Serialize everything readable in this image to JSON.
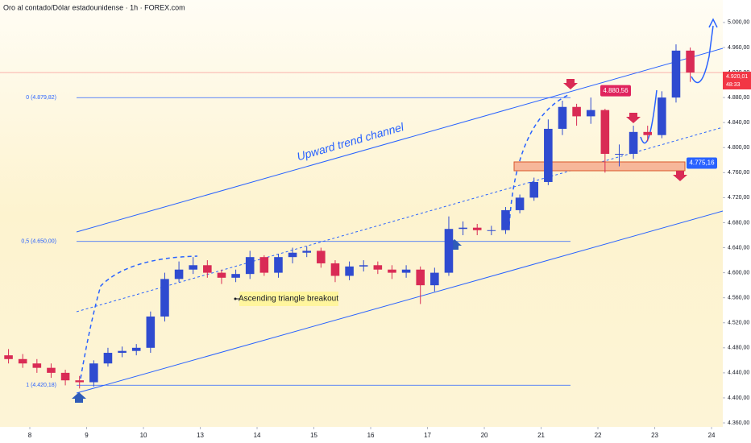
{
  "chart_data": {
    "type": "candlestick",
    "title": "Oro al contado/Dólar estadounidense · 1h · FOREX.com",
    "up_color": "#2f4bd0",
    "down_color": "#d92b55",
    "xlim": [
      -0.525,
      12.198
    ],
    "xticks": [
      {
        "value": 0,
        "label": "8"
      },
      {
        "value": 1,
        "label": "9"
      },
      {
        "value": 2,
        "label": "10"
      },
      {
        "value": 3,
        "label": "13"
      },
      {
        "value": 4,
        "label": "14"
      },
      {
        "value": 5,
        "label": "15"
      },
      {
        "value": 6,
        "label": "16"
      },
      {
        "value": 7,
        "label": "17"
      },
      {
        "value": 8,
        "label": "20"
      },
      {
        "value": 9,
        "label": "21"
      },
      {
        "value": 10,
        "label": "22"
      },
      {
        "value": 11,
        "label": "23"
      },
      {
        "value": 12,
        "label": "24"
      }
    ],
    "ylim": [
      4353.6,
      5035.9
    ],
    "yticks": [
      {
        "value": 4360,
        "label": "4.360,00"
      },
      {
        "value": 4400,
        "label": "4.400,00"
      },
      {
        "value": 4440,
        "label": "4.440,00"
      },
      {
        "value": 4480,
        "label": "4.480,00"
      },
      {
        "value": 4520,
        "label": "4.520,00"
      },
      {
        "value": 4560,
        "label": "4.560,00"
      },
      {
        "value": 4600,
        "label": "4.600,00"
      },
      {
        "value": 4640,
        "label": "4.640,00"
      },
      {
        "value": 4680,
        "label": "4.680,00"
      },
      {
        "value": 4720,
        "label": "4.720,00"
      },
      {
        "value": 4760,
        "label": "4.760,00"
      },
      {
        "value": 4800,
        "label": "4.800,00"
      },
      {
        "value": 4840,
        "label": "4.840,00"
      },
      {
        "value": 4880,
        "label": "4.880,00"
      },
      {
        "value": 4920,
        "label": "4.920,00"
      },
      {
        "value": 4960,
        "label": "4.960,00"
      },
      {
        "value": 5000,
        "label": "5.000,00"
      }
    ],
    "x": [
      -0.375,
      -0.125,
      0.125,
      0.375,
      0.625,
      0.875,
      1.125,
      1.375,
      1.625,
      1.875,
      2.125,
      2.375,
      2.625,
      2.875,
      3.125,
      3.375,
      3.625,
      3.875,
      4.125,
      4.375,
      4.625,
      4.875,
      5.125,
      5.375,
      5.625,
      5.875,
      6.125,
      6.375,
      6.625,
      6.875,
      7.125,
      7.375,
      7.625,
      7.875,
      8.125,
      8.375,
      8.625,
      8.875,
      9.125,
      9.375,
      9.625,
      9.875,
      10.125,
      10.375,
      10.625,
      10.875,
      11.125,
      11.375,
      11.625
    ],
    "open": [
      4468,
      4462,
      4455,
      4448,
      4440,
      4428,
      4425,
      4455,
      4472,
      4475,
      4480,
      4530,
      4590,
      4605,
      4612,
      4600,
      4592,
      4598,
      4625,
      4600,
      4625,
      4632,
      4635,
      4615,
      4595,
      4610,
      4612,
      4605,
      4600,
      4605,
      4580,
      4600,
      4670,
      4672,
      4668,
      4668,
      4700,
      4720,
      4745,
      4830,
      4865,
      4850,
      4860,
      4790,
      4790,
      4825,
      4820,
      4880,
      4955
    ],
    "high": [
      4478,
      4470,
      4462,
      4455,
      4445,
      4435,
      4460,
      4480,
      4482,
      4486,
      4538,
      4600,
      4618,
      4625,
      4620,
      4605,
      4605,
      4635,
      4628,
      4630,
      4640,
      4642,
      4640,
      4620,
      4618,
      4620,
      4618,
      4612,
      4612,
      4610,
      4608,
      4690,
      4682,
      4678,
      4675,
      4705,
      4725,
      4752,
      4845,
      4875,
      4870,
      4880,
      4862,
      4805,
      4835,
      4835,
      4890,
      4965,
      4960
    ],
    "low": [
      4455,
      4448,
      4440,
      4432,
      4420,
      4415,
      4418,
      4450,
      4465,
      4468,
      4472,
      4522,
      4585,
      4598,
      4592,
      4582,
      4585,
      4590,
      4595,
      4592,
      4615,
      4625,
      4608,
      4585,
      4588,
      4602,
      4598,
      4590,
      4592,
      4550,
      4570,
      4595,
      4660,
      4660,
      4660,
      4662,
      4695,
      4715,
      4740,
      4820,
      4835,
      4838,
      4760,
      4770,
      4782,
      4810,
      4815,
      4872,
      4905
    ],
    "close": [
      4462,
      4455,
      4448,
      4440,
      4428,
      4425,
      4455,
      4472,
      4475,
      4480,
      4530,
      4590,
      4605,
      4612,
      4600,
      4592,
      4598,
      4625,
      4600,
      4625,
      4632,
      4635,
      4615,
      4595,
      4610,
      4612,
      4605,
      4600,
      4605,
      4580,
      4600,
      4670,
      4672,
      4668,
      4668,
      4700,
      4720,
      4745,
      4830,
      4865,
      4850,
      4860,
      4790,
      4790,
      4825,
      4820,
      4880,
      4955,
      4920
    ],
    "levels": [
      {
        "label": "0 (4.879,82)",
        "value": 4879.82
      },
      {
        "label": "0,5 (4.650,00)",
        "value": 4650.0
      },
      {
        "label": "1 (4.420,18)",
        "value": 4420.18
      }
    ],
    "tags": [
      {
        "label": "4.880,56",
        "value": 4880.56,
        "color": "#e0245e"
      },
      {
        "label": "4.775,16",
        "value": 4775.16,
        "color": "#2962ff"
      }
    ],
    "last_price": {
      "value": 4920.01,
      "label": "4.920,01",
      "countdown": "48:33",
      "color": "#f23645"
    },
    "annotations": [
      "Upward trend channel",
      "Ascending triangle breakout"
    ]
  }
}
